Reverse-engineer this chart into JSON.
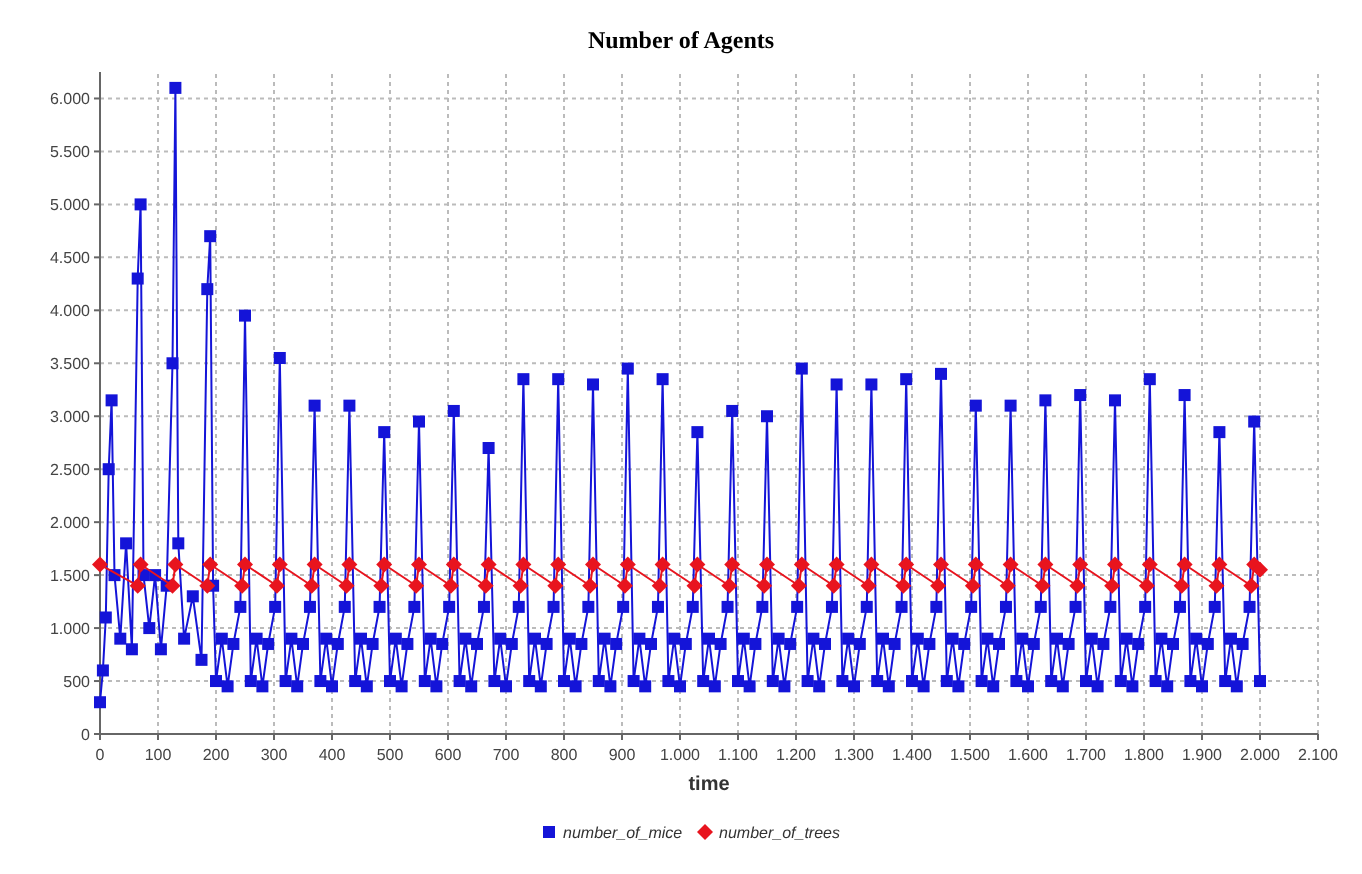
{
  "chart_data": {
    "type": "line",
    "title": "Number of Agents",
    "xlabel": "time",
    "grid": true,
    "legend": "bottom",
    "line_style": "solid",
    "xlim": [
      0,
      2100
    ],
    "ylim": [
      0,
      6250
    ],
    "xticks": [
      0,
      100,
      200,
      300,
      400,
      500,
      600,
      700,
      800,
      900,
      {
        "value": 1000,
        "label": "1.000"
      },
      {
        "value": 1100,
        "label": "1.100"
      },
      {
        "value": 1200,
        "label": "1.200"
      },
      {
        "value": 1300,
        "label": "1.300"
      },
      {
        "value": 1400,
        "label": "1.400"
      },
      {
        "value": 1500,
        "label": "1.500"
      },
      {
        "value": 1600,
        "label": "1.600"
      },
      {
        "value": 1700,
        "label": "1.700"
      },
      {
        "value": 1800,
        "label": "1.800"
      },
      {
        "value": 1900,
        "label": "1.900"
      },
      {
        "value": 2000,
        "label": "2.000"
      },
      {
        "value": 2100,
        "label": "2.100"
      }
    ],
    "yticks": [
      0,
      500,
      {
        "value": 1000,
        "label": "1.000"
      },
      {
        "value": 1500,
        "label": "1.500"
      },
      {
        "value": 2000,
        "label": "2.000"
      },
      {
        "value": 2500,
        "label": "2.500"
      },
      {
        "value": 3000,
        "label": "3.000"
      },
      {
        "value": 3500,
        "label": "3.500"
      },
      {
        "value": 4000,
        "label": "4.000"
      },
      {
        "value": 4500,
        "label": "4.500"
      },
      {
        "value": 5000,
        "label": "5.000"
      },
      {
        "value": 5500,
        "label": "5.500"
      },
      {
        "value": 6000,
        "label": "6.000"
      }
    ],
    "series": [
      {
        "name": "number_of_mice",
        "color": "#1414d8",
        "marker": "square",
        "x": [
          0,
          5,
          10,
          15,
          20,
          25,
          35,
          45,
          55,
          65,
          70,
          75,
          85,
          95,
          105,
          115,
          125,
          130,
          135,
          145,
          160,
          175,
          185,
          190,
          195,
          200,
          210,
          220,
          230,
          242,
          250,
          260,
          270,
          280,
          290,
          302,
          310,
          320,
          330,
          340,
          350,
          362,
          370,
          380,
          390,
          400,
          410,
          422,
          430,
          440,
          450,
          460,
          470,
          482,
          490,
          500,
          510,
          520,
          530,
          542,
          550,
          560,
          570,
          580,
          590,
          602,
          610,
          620,
          630,
          640,
          650,
          662,
          670,
          680,
          690,
          700,
          710,
          722,
          730,
          740,
          750,
          760,
          770,
          782,
          790,
          800,
          810,
          820,
          830,
          842,
          850,
          860,
          870,
          880,
          890,
          902,
          910,
          920,
          930,
          940,
          950,
          962,
          970,
          980,
          990,
          1000,
          1010,
          1022,
          1030,
          1040,
          1050,
          1060,
          1070,
          1082,
          1090,
          1100,
          1110,
          1120,
          1130,
          1142,
          1150,
          1160,
          1170,
          1180,
          1190,
          1202,
          1210,
          1220,
          1230,
          1240,
          1250,
          1262,
          1270,
          1280,
          1290,
          1300,
          1310,
          1322,
          1330,
          1340,
          1350,
          1360,
          1370,
          1382,
          1390,
          1400,
          1410,
          1420,
          1430,
          1442,
          1450,
          1460,
          1470,
          1480,
          1490,
          1502,
          1510,
          1520,
          1530,
          1540,
          1550,
          1562,
          1570,
          1580,
          1590,
          1600,
          1610,
          1622,
          1630,
          1640,
          1650,
          1660,
          1670,
          1682,
          1690,
          1700,
          1710,
          1720,
          1730,
          1742,
          1750,
          1760,
          1770,
          1780,
          1790,
          1802,
          1810,
          1820,
          1830,
          1840,
          1850,
          1862,
          1870,
          1880,
          1890,
          1900,
          1910,
          1922,
          1930,
          1940,
          1950,
          1960,
          1970,
          1982,
          1990,
          2000
        ],
        "values": [
          300,
          600,
          1100,
          2500,
          3150,
          1500,
          900,
          1800,
          800,
          4300,
          5000,
          1500,
          1000,
          1500,
          800,
          1400,
          3500,
          6100,
          1800,
          900,
          1300,
          700,
          4200,
          4700,
          1400,
          500,
          900,
          450,
          850,
          1200,
          3950,
          500,
          900,
          450,
          850,
          1200,
          3550,
          500,
          900,
          450,
          850,
          1200,
          3100,
          500,
          900,
          450,
          850,
          1200,
          3100,
          500,
          900,
          450,
          850,
          1200,
          2850,
          500,
          900,
          450,
          850,
          1200,
          2950,
          500,
          900,
          450,
          850,
          1200,
          3050,
          500,
          900,
          450,
          850,
          1200,
          2700,
          500,
          900,
          450,
          850,
          1200,
          3350,
          500,
          900,
          450,
          850,
          1200,
          3350,
          500,
          900,
          450,
          850,
          1200,
          3300,
          500,
          900,
          450,
          850,
          1200,
          3450,
          500,
          900,
          450,
          850,
          1200,
          3350,
          500,
          900,
          450,
          850,
          1200,
          2850,
          500,
          900,
          450,
          850,
          1200,
          3050,
          500,
          900,
          450,
          850,
          1200,
          3000,
          500,
          900,
          450,
          850,
          1200,
          3450,
          500,
          900,
          450,
          850,
          1200,
          3300,
          500,
          900,
          450,
          850,
          1200,
          3300,
          500,
          900,
          450,
          850,
          1200,
          3350,
          500,
          900,
          450,
          850,
          1200,
          3400,
          500,
          900,
          450,
          850,
          1200,
          3100,
          500,
          900,
          450,
          850,
          1200,
          3100,
          500,
          900,
          450,
          850,
          1200,
          3150,
          500,
          900,
          450,
          850,
          1200,
          3200,
          500,
          900,
          450,
          850,
          1200,
          3150,
          500,
          900,
          450,
          850,
          1200,
          3350,
          500,
          900,
          450,
          850,
          1200,
          3200,
          500,
          900,
          450,
          850,
          1200,
          2850,
          500,
          900,
          450,
          850,
          1200,
          2950,
          500
        ]
      },
      {
        "name": "number_of_trees",
        "color": "#e8141e",
        "marker": "diamond",
        "x": [
          0,
          65,
          70,
          125,
          130,
          185,
          190,
          245,
          250,
          305,
          310,
          365,
          370,
          425,
          430,
          485,
          490,
          545,
          550,
          605,
          610,
          665,
          670,
          725,
          730,
          785,
          790,
          845,
          850,
          905,
          910,
          965,
          970,
          1025,
          1030,
          1085,
          1090,
          1145,
          1150,
          1205,
          1210,
          1265,
          1270,
          1325,
          1330,
          1385,
          1390,
          1445,
          1450,
          1505,
          1510,
          1565,
          1570,
          1625,
          1630,
          1685,
          1690,
          1745,
          1750,
          1805,
          1810,
          1865,
          1870,
          1925,
          1930,
          1985,
          1990,
          2000
        ],
        "values": [
          1600,
          1400,
          1600,
          1400,
          1600,
          1400,
          1600,
          1400,
          1600,
          1400,
          1600,
          1400,
          1600,
          1400,
          1600,
          1400,
          1600,
          1400,
          1600,
          1400,
          1600,
          1400,
          1600,
          1400,
          1600,
          1400,
          1600,
          1400,
          1600,
          1400,
          1600,
          1400,
          1600,
          1400,
          1600,
          1400,
          1600,
          1400,
          1600,
          1400,
          1600,
          1400,
          1600,
          1400,
          1600,
          1400,
          1600,
          1400,
          1600,
          1400,
          1600,
          1400,
          1600,
          1400,
          1600,
          1400,
          1600,
          1400,
          1600,
          1400,
          1600,
          1400,
          1600,
          1400,
          1600,
          1400,
          1600,
          1550
        ]
      }
    ]
  }
}
